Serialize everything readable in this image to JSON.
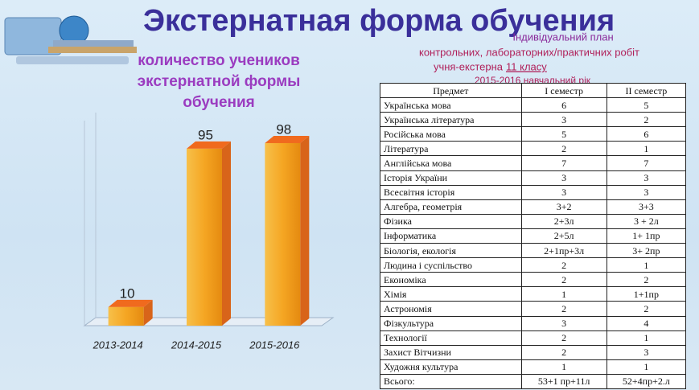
{
  "slide_title": "Экстернатная форма обучения",
  "plan_heading": "Індивідуальний план",
  "plan_line_1": "контрольних, лабораторних/практичних робіт",
  "plan_line_2": "учня-екстерна",
  "plan_class": "11 класу",
  "plan_year": "2015-2016 навчальний рік",
  "chart_data": {
    "type": "bar3d",
    "title_lines": [
      "количество учеников",
      "экстернатной формы",
      "обучения"
    ],
    "categories": [
      "2013-2014",
      "2014-2015",
      "2015-2016"
    ],
    "values": [
      10,
      95,
      98
    ],
    "color": "#f5a623",
    "ylim": [
      0,
      120
    ]
  },
  "table": {
    "header": [
      "Предмет",
      "І семестр",
      "ІІ семестр"
    ],
    "rows": [
      [
        "Українська мова",
        "6",
        "5"
      ],
      [
        "Українська література",
        "3",
        "2"
      ],
      [
        "Російська мова",
        "5",
        "6"
      ],
      [
        "Література",
        "2",
        "1"
      ],
      [
        "Англійська мова",
        "7",
        "7"
      ],
      [
        "Історія України",
        "3",
        "3"
      ],
      [
        "Всесвітня історія",
        "3",
        "3"
      ],
      [
        "Алгебра, геометрія",
        "3+2",
        "3+3"
      ],
      [
        "Фізика",
        "2+3л",
        "3 + 2л"
      ],
      [
        "Інформатика",
        "2+5л",
        "1+ 1пр"
      ],
      [
        "Біологія, екологія",
        "2+1пр+3л",
        "3+ 2пр"
      ],
      [
        "Людина і суспільство",
        "2",
        "1"
      ],
      [
        "Економіка",
        "2",
        "2"
      ],
      [
        "Хімія",
        "1",
        "1+1пр"
      ],
      [
        "Астрономія",
        "2",
        "2"
      ],
      [
        "Фізкультура",
        "3",
        "4"
      ],
      [
        "Технології",
        "2",
        "1"
      ],
      [
        "Захист Вітчизни",
        "2",
        "3"
      ],
      [
        "Художня культура",
        "1",
        "1"
      ],
      [
        "Всього:",
        "53+1 пр+11л",
        "52+4пр+2.л"
      ]
    ]
  }
}
